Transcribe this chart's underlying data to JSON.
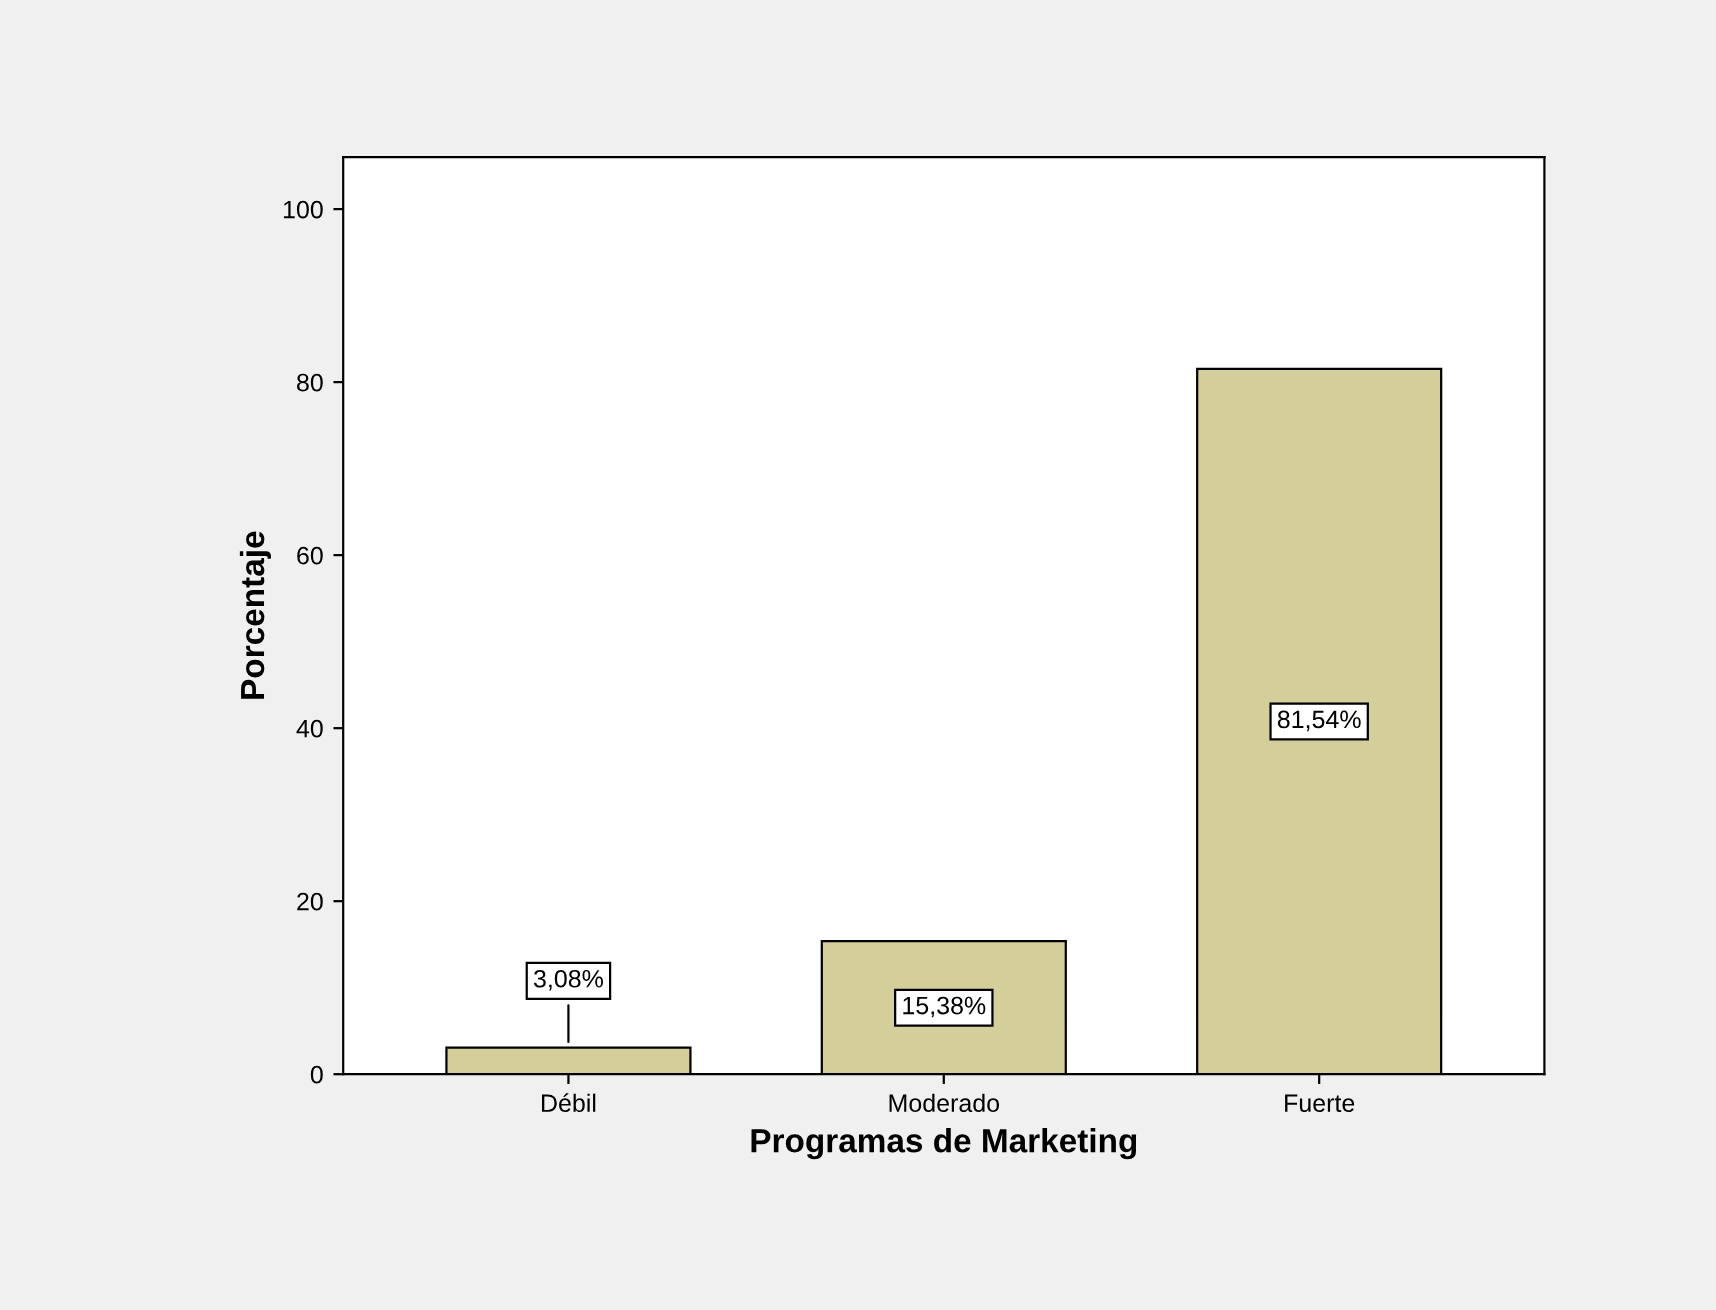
{
  "chart_data": {
    "type": "bar",
    "xlabel": "Programas de Marketing",
    "ylabel": "Porcentaje",
    "categories": [
      "Débil",
      "Moderado",
      "Fuerte"
    ],
    "values": [
      3.08,
      15.38,
      81.54
    ],
    "value_labels": [
      "3,08%",
      "15,38%",
      "81,54%"
    ],
    "color": "#d4cf9a",
    "ylim": [
      0,
      106
    ],
    "yticks": [
      0,
      20,
      40,
      60,
      80,
      100
    ],
    "grid": false
  }
}
